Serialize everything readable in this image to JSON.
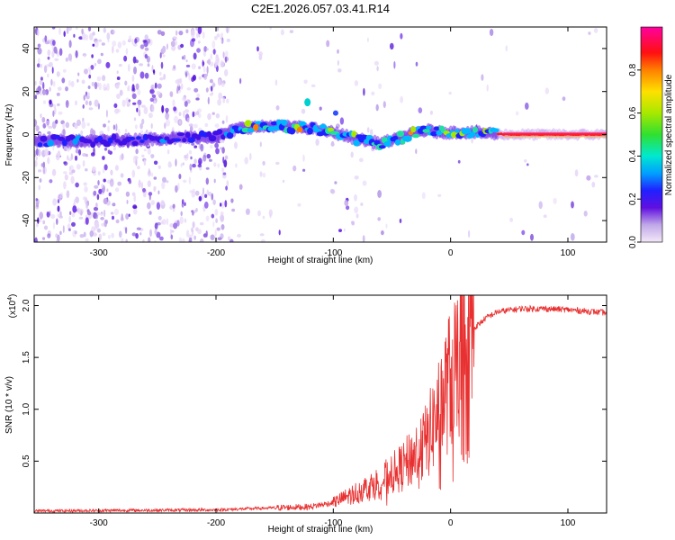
{
  "chart_data": [
    {
      "type": "heatmap",
      "title": "C2E1.2026.057.03.41.R14",
      "xlabel": "Height of straight line (km)",
      "ylabel": "Frequency (Hz)",
      "xlim": [
        -355,
        133
      ],
      "ylim": [
        -50,
        50
      ],
      "xticks": [
        -300,
        -200,
        -100,
        0,
        100
      ],
      "yticks": [
        -40,
        -20,
        0,
        20,
        40
      ],
      "ridge": {
        "x": [
          -350,
          -300,
          -250,
          -200,
          -180,
          -150,
          -120,
          -100,
          -80,
          -60,
          -45,
          -30,
          -20,
          -10,
          0,
          20,
          50,
          133
        ],
        "y": [
          -3,
          -3,
          -2,
          -1,
          3,
          4,
          3,
          1,
          -2,
          -4,
          -2,
          1,
          2,
          1,
          1,
          1,
          0,
          0
        ]
      },
      "colorbar": {
        "label": "Normalized spectral amplitude",
        "ticks": [
          "0.0",
          "0.2",
          "0.4",
          "0.6",
          "0.8"
        ]
      }
    },
    {
      "type": "line",
      "xlabel": "Height of straight line (km)",
      "ylabel": "SNR (10 * v/v)",
      "multiplier": "(x10",
      "multiplier_exp": "4",
      "multiplier_close": ")",
      "xlim": [
        -355,
        133
      ],
      "ylim": [
        0,
        2.1
      ],
      "xticks": [
        -300,
        -200,
        -100,
        0,
        100
      ],
      "yticks": [
        "0.5",
        "1.0",
        "1.5",
        "2.0"
      ],
      "line_color": "#e83030",
      "envelope": {
        "x": [
          -355,
          -200,
          -150,
          -120,
          -100,
          -90,
          -80,
          -60,
          -40,
          -20,
          0,
          10,
          20,
          30,
          40,
          60,
          80,
          100,
          133
        ],
        "y": [
          0.02,
          0.03,
          0.05,
          0.06,
          0.1,
          0.15,
          0.2,
          0.3,
          0.45,
          0.7,
          1.3,
          1.6,
          1.78,
          1.88,
          1.94,
          1.97,
          1.97,
          1.96,
          1.93
        ]
      }
    }
  ]
}
